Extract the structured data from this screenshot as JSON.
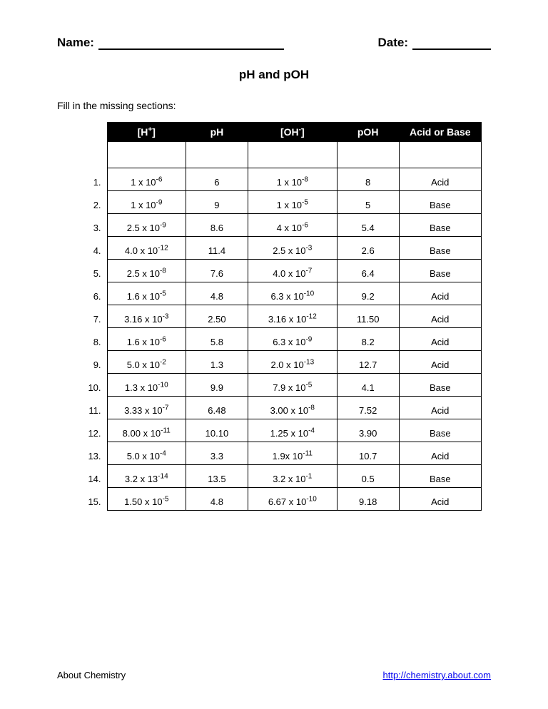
{
  "header": {
    "name_label": "Name:",
    "date_label": "Date:"
  },
  "title": "pH and pOH",
  "instruction": "Fill in the missing sections:",
  "columns": {
    "c1_pre": "[H",
    "c1_sup": "+",
    "c1_post": "]",
    "c2": "pH",
    "c3_pre": "[OH",
    "c3_sup": "-",
    "c3_post": "]",
    "c4": "pOH",
    "c5": "Acid or Base"
  },
  "rows": [
    {
      "n": "1.",
      "h_m": "1",
      "h_e": "-6",
      "ph": "6",
      "oh_m": "1",
      "oh_e": "-8",
      "poh": "8",
      "ab": "Acid"
    },
    {
      "n": "2.",
      "h_m": "1",
      "h_e": "-9",
      "ph": "9",
      "oh_m": "1",
      "oh_e": "-5",
      "poh": "5",
      "ab": "Base"
    },
    {
      "n": "3.",
      "h_m": "2.5",
      "h_e": "-9",
      "ph": "8.6",
      "oh_m": "4",
      "oh_e": "-6",
      "poh": "5.4",
      "ab": "Base"
    },
    {
      "n": "4.",
      "h_m": "4.0",
      "h_e": "-12",
      "ph": "11.4",
      "oh_m": "2.5",
      "oh_e": "-3",
      "poh": "2.6",
      "ab": "Base"
    },
    {
      "n": "5.",
      "h_m": "2.5",
      "h_e": "-8",
      "ph": "7.6",
      "oh_m": "4.0",
      "oh_e": "-7",
      "poh": "6.4",
      "ab": "Base"
    },
    {
      "n": "6.",
      "h_m": "1.6",
      "h_e": "-5",
      "ph": "4.8",
      "oh_m": "6.3",
      "oh_e": "-10",
      "poh": "9.2",
      "ab": "Acid"
    },
    {
      "n": "7.",
      "h_m": "3.16",
      "h_e": "-3",
      "ph": "2.50",
      "oh_m": "3.16",
      "oh_e": "-12",
      "poh": "11.50",
      "ab": "Acid"
    },
    {
      "n": "8.",
      "h_m": "1.6",
      "h_e": "-6",
      "ph": "5.8",
      "oh_m": "6.3",
      "oh_e": "-9",
      "poh": "8.2",
      "ab": "Acid"
    },
    {
      "n": "9.",
      "h_m": "5.0",
      "h_e": "-2",
      "ph": "1.3",
      "oh_m": "2.0",
      "oh_e": "-13",
      "poh": "12.7",
      "ab": "Acid"
    },
    {
      "n": "10.",
      "h_m": "1.3",
      "h_e": "-10",
      "ph": "9.9",
      "oh_m": "7.9",
      "oh_e": "-5",
      "poh": "4.1",
      "ab": "Base"
    },
    {
      "n": "11.",
      "h_m": "3.33",
      "h_e": "-7",
      "ph": "6.48",
      "oh_m": "3.00",
      "oh_e": "-8",
      "poh": "7.52",
      "ab": "Acid"
    },
    {
      "n": "12.",
      "h_m": "8.00",
      "h_e": "-11",
      "ph": "10.10",
      "oh_m": "1.25",
      "oh_e": "-4",
      "poh": "3.90",
      "ab": "Base"
    },
    {
      "n": "13.",
      "h_m": "5.0",
      "h_e": "-4",
      "ph": "3.3",
      "oh_m": "1.9x",
      "oh_e": "-11",
      "poh": "10.7",
      "ab": "Acid",
      "oh_custom": "1.9x 10"
    },
    {
      "n": "14.",
      "h_m": "3.2",
      "h_e": "-14",
      "ph": "13.5",
      "oh_m": "3.2",
      "oh_e": "-1",
      "poh": "0.5",
      "ab": "Base",
      "h_base": "13"
    },
    {
      "n": "15.",
      "h_m": "1.50",
      "h_e": "-5",
      "ph": "4.8",
      "oh_m": "6.67",
      "oh_e": "-10",
      "poh": "9.18",
      "ab": "Acid"
    }
  ],
  "footer": {
    "left": "About Chemistry",
    "link": "http://chemistry.about.com"
  }
}
